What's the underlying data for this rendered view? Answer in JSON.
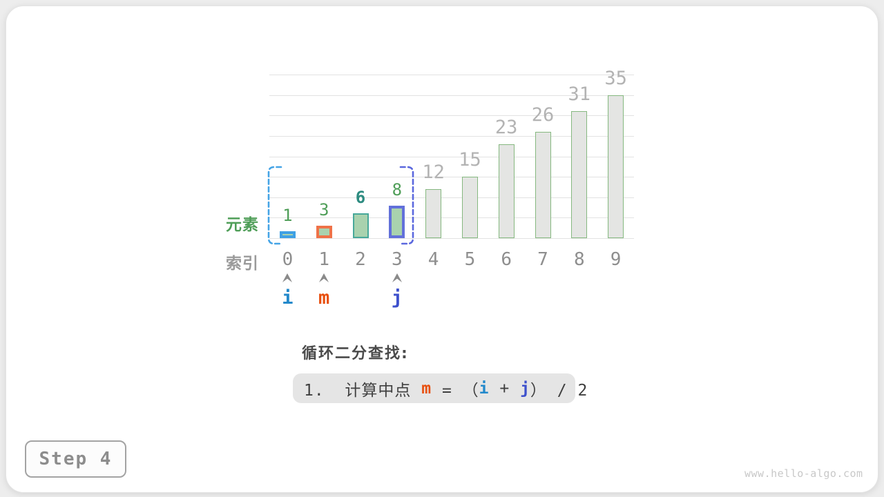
{
  "page": {
    "heading": "循环二分查找:",
    "step_label": "Step 4",
    "watermark": "www.hello-algo.com",
    "axis_labels": {
      "element": "元素",
      "index": "索引"
    }
  },
  "chart_data": {
    "type": "bar",
    "title": "",
    "xlabel": "索引",
    "ylabel": "元素",
    "categories": [
      "0",
      "1",
      "2",
      "3",
      "4",
      "5",
      "6",
      "7",
      "8",
      "9"
    ],
    "values": [
      1,
      3,
      6,
      8,
      12,
      15,
      23,
      26,
      31,
      35
    ],
    "ylim": [
      0,
      40
    ],
    "gridline_step": 5,
    "grid": true,
    "legend": false,
    "bar_styles": [
      {
        "fill": "#a9d2ae",
        "border": "#3fa0e4",
        "border_width": 4,
        "label_color": "#4f9e58",
        "label_bold": false,
        "label_size": 24
      },
      {
        "fill": "#a9d2ae",
        "border": "#ef7248",
        "border_width": 4,
        "label_color": "#4f9e58",
        "label_bold": false,
        "label_size": 24
      },
      {
        "fill": "#a9d2ae",
        "border": "#47a89a",
        "border_width": 2,
        "label_color": "#2d8b80",
        "label_bold": true,
        "label_size": 24
      },
      {
        "fill": "#a9d2ae",
        "border": "#6270da",
        "border_width": 4,
        "label_color": "#4f9e58",
        "label_bold": false,
        "label_size": 24
      },
      {
        "fill": "#e4e5e3",
        "border": "#85b87f",
        "border_width": 1.5,
        "label_color": "#b3b3b3",
        "label_bold": false,
        "label_size": 27
      },
      {
        "fill": "#e4e5e3",
        "border": "#85b87f",
        "border_width": 1.5,
        "label_color": "#b3b3b3",
        "label_bold": false,
        "label_size": 27
      },
      {
        "fill": "#e4e5e3",
        "border": "#85b87f",
        "border_width": 1.5,
        "label_color": "#b3b3b3",
        "label_bold": false,
        "label_size": 27
      },
      {
        "fill": "#e4e5e3",
        "border": "#85b87f",
        "border_width": 1.5,
        "label_color": "#b3b3b3",
        "label_bold": false,
        "label_size": 27
      },
      {
        "fill": "#e4e5e3",
        "border": "#85b87f",
        "border_width": 1.5,
        "label_color": "#b3b3b3",
        "label_bold": false,
        "label_size": 27
      },
      {
        "fill": "#e4e5e3",
        "border": "#85b87f",
        "border_width": 1.5,
        "label_color": "#b3b3b3",
        "label_bold": false,
        "label_size": 27
      }
    ],
    "pointers": [
      {
        "label": "i",
        "index": 0,
        "color": "#2389cb"
      },
      {
        "label": "m",
        "index": 1,
        "color": "#e8500f"
      },
      {
        "label": "j",
        "index": 3,
        "color": "#3d50cc"
      }
    ],
    "search_range": {
      "from": 0,
      "to": 3,
      "left_color": "#45a4e6",
      "right_color": "#5b68de"
    },
    "caret_color": "#8a8a8a"
  },
  "formula": {
    "segments": [
      {
        "text": "1.  计算中点 ",
        "color": "#3f3f3f",
        "bold": false
      },
      {
        "text": "m",
        "color": "#e8500f",
        "bold": true
      },
      {
        "text": " = （",
        "color": "#3f3f3f",
        "bold": false
      },
      {
        "text": "i",
        "color": "#2389cb",
        "bold": true
      },
      {
        "text": " + ",
        "color": "#3f3f3f",
        "bold": false
      },
      {
        "text": "j",
        "color": "#3d50cc",
        "bold": true
      },
      {
        "text": "） / 2",
        "color": "#3f3f3f",
        "bold": false
      }
    ]
  }
}
